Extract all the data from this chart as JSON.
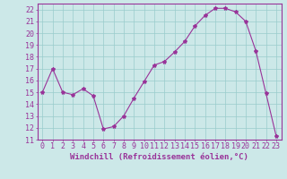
{
  "x": [
    0,
    1,
    2,
    3,
    4,
    5,
    6,
    7,
    8,
    9,
    10,
    11,
    12,
    13,
    14,
    15,
    16,
    17,
    18,
    19,
    20,
    21,
    22,
    23
  ],
  "y": [
    15,
    17,
    15,
    14.8,
    15.3,
    14.7,
    11.9,
    12.1,
    13.0,
    14.5,
    15.9,
    17.3,
    17.6,
    18.4,
    19.3,
    20.6,
    21.5,
    22.1,
    22.1,
    21.8,
    21.0,
    18.5,
    14.9,
    11.3
  ],
  "line_color": "#993399",
  "marker": "*",
  "marker_size": 3,
  "bg_color": "#cce8e8",
  "grid_color": "#99cccc",
  "xlabel": "Windchill (Refroidissement éolien,°C)",
  "xlim": [
    -0.5,
    23.5
  ],
  "ylim": [
    11,
    22.5
  ],
  "yticks": [
    11,
    12,
    13,
    14,
    15,
    16,
    17,
    18,
    19,
    20,
    21,
    22
  ],
  "xticks": [
    0,
    1,
    2,
    3,
    4,
    5,
    6,
    7,
    8,
    9,
    10,
    11,
    12,
    13,
    14,
    15,
    16,
    17,
    18,
    19,
    20,
    21,
    22,
    23
  ],
  "xlabel_fontsize": 6.5,
  "tick_fontsize": 6.0,
  "tick_color": "#993399",
  "label_color": "#993399",
  "spine_color": "#993399"
}
